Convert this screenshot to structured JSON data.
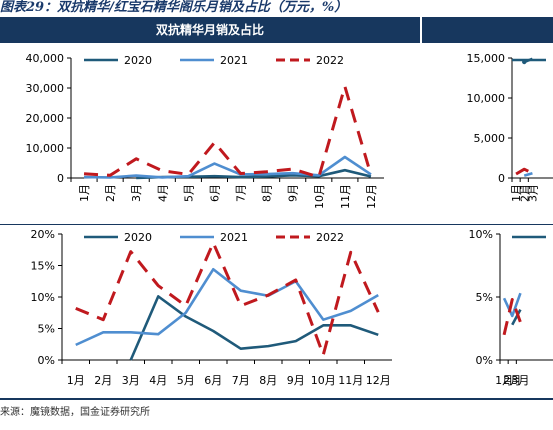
{
  "figure_title": "图表29：双抗精华/红宝石精华阁乐月销及占比（万元，%）",
  "panel_title": "双抗精华月销及占比",
  "source": "来源：魔镜数据，国金证券研究所",
  "colors": {
    "s2020": "#1f5a7a",
    "s2021": "#4f8ed0",
    "s2022": "#c0191e",
    "header": "#17375e"
  },
  "chart_data": [
    {
      "type": "line",
      "title": "双抗精华月销及占比",
      "categories": [
        "1月",
        "2月",
        "3月",
        "4月",
        "5月",
        "6月",
        "7月",
        "8月",
        "9月",
        "10月",
        "11月",
        "12月"
      ],
      "ylim": [
        0,
        40000
      ],
      "yticks": [
        "0",
        "10,000",
        "20,000",
        "30,000",
        "40,000"
      ],
      "legend": "top",
      "series": [
        {
          "name": "2020",
          "values": [
            null,
            null,
            0,
            300,
            400,
            600,
            300,
            500,
            900,
            600,
            2600,
            500
          ]
        },
        {
          "name": "2021",
          "values": [
            300,
            200,
            800,
            200,
            600,
            4800,
            1200,
            1300,
            1600,
            900,
            7000,
            1200
          ]
        },
        {
          "name": "2022",
          "values": [
            1400,
            900,
            6400,
            2400,
            1200,
            11800,
            1500,
            2100,
            3000,
            300,
            30500,
            1000
          ]
        }
      ]
    },
    {
      "type": "line",
      "categories": [
        "1月",
        "2月",
        "3月",
        "4月",
        "5月",
        "6月",
        "7月",
        "8月",
        "9月",
        "10月",
        "11月",
        "12月"
      ],
      "ylim": [
        0,
        20
      ],
      "yticks": [
        "0%",
        "5%",
        "10%",
        "15%",
        "20%"
      ],
      "legend": "top",
      "series": [
        {
          "name": "2020",
          "values": [
            null,
            null,
            0,
            10.1,
            6.9,
            4.6,
            1.8,
            2.2,
            3.0,
            5.5,
            5.5,
            4.0
          ]
        },
        {
          "name": "2021",
          "values": [
            2.4,
            4.4,
            4.4,
            4.1,
            7.5,
            14.4,
            11.0,
            10.2,
            12.5,
            6.4,
            7.8,
            10.3
          ]
        },
        {
          "name": "2022",
          "values": [
            8.2,
            6.4,
            17.2,
            11.8,
            8.6,
            18.6,
            8.6,
            10.3,
            12.7,
            0.8,
            17.1,
            7.6
          ]
        }
      ]
    },
    {
      "type": "line",
      "categories": [
        "1月",
        "2月",
        "3月"
      ],
      "ylim": [
        0,
        15000
      ],
      "yticks": [
        "0",
        "5,000",
        "10,000",
        "15,000"
      ],
      "legend": "top",
      "series": [
        {
          "values": [
            null,
            14500,
            14900
          ]
        },
        {
          "values": [
            null,
            300,
            600
          ]
        },
        {
          "values": [
            500,
            1100,
            600
          ]
        }
      ]
    },
    {
      "type": "line",
      "categories": [
        "1月",
        "2月",
        "3月"
      ],
      "ylim": [
        0,
        10
      ],
      "yticks": [
        "0%",
        "5%",
        "10%"
      ],
      "legend": "top",
      "series": [
        {
          "values": [
            null,
            2.8,
            4.0
          ]
        },
        {
          "values": [
            4.9,
            3.5,
            5.3
          ]
        },
        {
          "values": [
            2.0,
            4.8,
            3.0
          ]
        }
      ]
    }
  ]
}
